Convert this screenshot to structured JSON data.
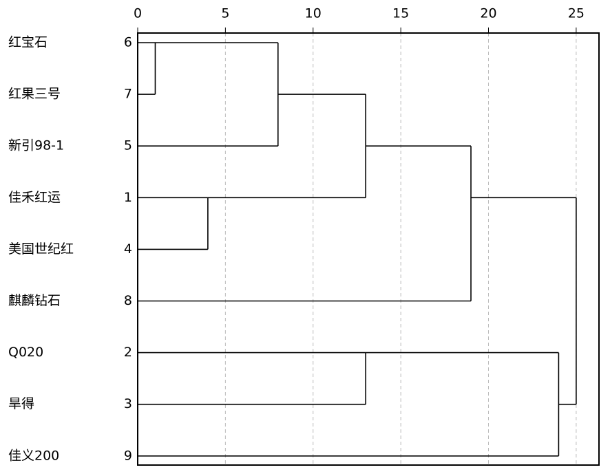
{
  "chart_data": {
    "type": "dendrogram",
    "leaves": [
      {
        "name": "红宝石",
        "id": 6
      },
      {
        "name": "红果三号",
        "id": 7
      },
      {
        "name": "新引98-1",
        "id": 5
      },
      {
        "name": "佳禾红运",
        "id": 1
      },
      {
        "name": "美国世纪红",
        "id": 4
      },
      {
        "name": "麒麟钻石",
        "id": 8
      },
      {
        "name": "Q020",
        "id": 2
      },
      {
        "name": "旱得",
        "id": 3
      },
      {
        "name": "佳义200",
        "id": 9
      }
    ],
    "merges": [
      {
        "children": [
          0,
          1
        ],
        "height": 1
      },
      {
        "children": [
          9,
          2
        ],
        "height": 8
      },
      {
        "children": [
          3,
          4
        ],
        "height": 4
      },
      {
        "children": [
          10,
          11
        ],
        "height": 13
      },
      {
        "children": [
          12,
          5
        ],
        "height": 19
      },
      {
        "children": [
          6,
          7
        ],
        "height": 13
      },
      {
        "children": [
          14,
          8
        ],
        "height": 24
      },
      {
        "children": [
          13,
          15
        ],
        "height": 25
      }
    ],
    "xlim": [
      0,
      26.3
    ],
    "xticks": [
      0,
      5,
      10,
      15,
      20,
      25
    ],
    "grid": true
  }
}
